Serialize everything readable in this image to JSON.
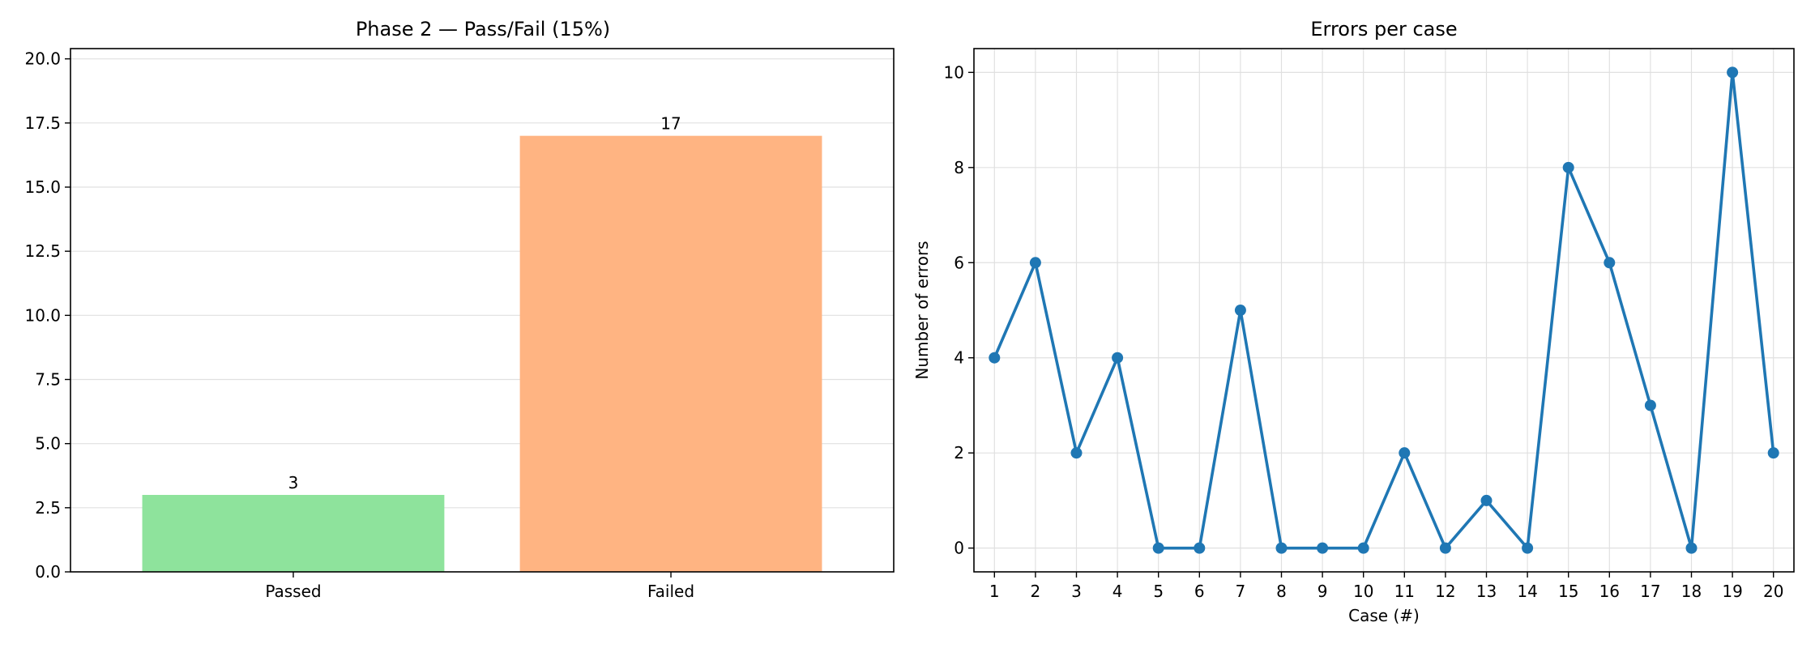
{
  "chart_data": [
    {
      "type": "bar",
      "title": "Phase 2 — Pass/Fail (15%)",
      "xlabel": "",
      "ylabel": "",
      "categories": [
        "Passed",
        "Failed"
      ],
      "values": [
        3,
        17
      ],
      "data_labels": [
        "3",
        "17"
      ],
      "colors": [
        "#8ee39c",
        "#ffb482"
      ],
      "ylim": [
        0,
        20.4
      ],
      "yticks": [
        0.0,
        2.5,
        5.0,
        7.5,
        10.0,
        12.5,
        15.0,
        17.5,
        20.0
      ],
      "ytick_labels": [
        "0.0",
        "2.5",
        "5.0",
        "7.5",
        "10.0",
        "12.5",
        "15.0",
        "17.5",
        "20.0"
      ],
      "grid": "y",
      "legend": "none"
    },
    {
      "type": "line",
      "title": "Errors per case",
      "xlabel": "Case (#)",
      "ylabel": "Number of errors",
      "x": [
        1,
        2,
        3,
        4,
        5,
        6,
        7,
        8,
        9,
        10,
        11,
        12,
        13,
        14,
        15,
        16,
        17,
        18,
        19,
        20
      ],
      "series": [
        {
          "values": [
            4,
            6,
            2,
            4,
            0,
            0,
            5,
            0,
            0,
            0,
            2,
            0,
            1,
            0,
            8,
            6,
            3,
            0,
            10,
            2
          ],
          "color": "#1f77b4",
          "marker": "circle"
        }
      ],
      "xlim": [
        0.5,
        20.5
      ],
      "ylim": [
        -0.5,
        10.5
      ],
      "xticks": [
        1,
        2,
        3,
        4,
        5,
        6,
        7,
        8,
        9,
        10,
        11,
        12,
        13,
        14,
        15,
        16,
        17,
        18,
        19,
        20
      ],
      "yticks": [
        0,
        2,
        4,
        6,
        8,
        10
      ],
      "grid": "both",
      "legend": "none"
    }
  ]
}
